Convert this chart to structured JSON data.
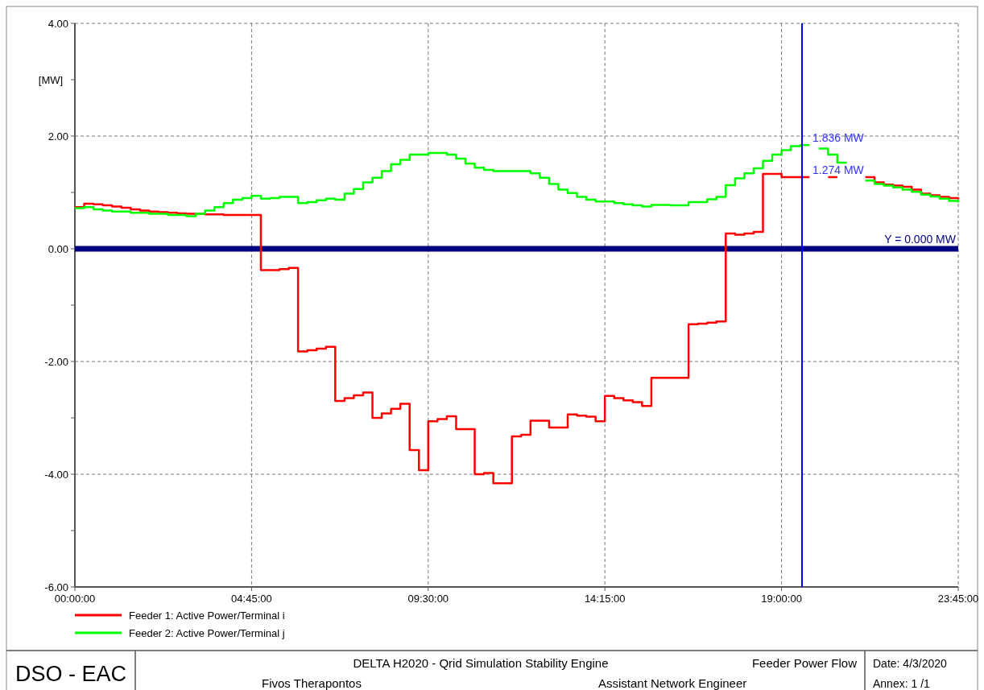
{
  "chart_data": {
    "type": "step",
    "ylabel": "[MW]",
    "xlim": [
      0,
      23.75
    ],
    "xticks": [
      {
        "value": 0,
        "label": "00:00:00"
      },
      {
        "value": 4.75,
        "label": "04:45:00"
      },
      {
        "value": 9.5,
        "label": "09:30:00"
      },
      {
        "value": 14.25,
        "label": "14:15:00"
      },
      {
        "value": 19,
        "label": "19:00:00"
      },
      {
        "value": 23.75,
        "label": "23:45:00"
      }
    ],
    "ylim": [
      -6,
      4
    ],
    "yticks": [
      {
        "value": 4,
        "label": "4.00"
      },
      {
        "value": 3,
        "label": null
      },
      {
        "value": 2,
        "label": "2.00"
      },
      {
        "value": 1,
        "label": null
      },
      {
        "value": 0,
        "label": "0.00"
      },
      {
        "value": -1,
        "label": null
      },
      {
        "value": -2,
        "label": "-2.00"
      },
      {
        "value": -3,
        "label": null
      },
      {
        "value": -4,
        "label": "-4.00"
      },
      {
        "value": -5,
        "label": null
      },
      {
        "value": -6,
        "label": "-6.00"
      }
    ],
    "grid": true,
    "legend": "bottom",
    "line_style": "solid",
    "marker": "none",
    "series": [
      {
        "name": "Feeder 1: Active Power/Terminal i",
        "color": "#ff0000",
        "x": [
          0,
          0.25,
          0.5,
          0.75,
          1,
          1.25,
          1.5,
          1.75,
          2,
          2.25,
          2.5,
          2.75,
          3,
          3.25,
          3.5,
          4,
          5,
          5.5,
          5.75,
          6,
          6.25,
          6.5,
          6.75,
          7,
          7.25,
          7.5,
          7.75,
          8,
          8.25,
          8.5,
          8.75,
          9,
          9.25,
          9.5,
          9.75,
          10,
          10.25,
          10.75,
          11,
          11.25,
          11.75,
          12,
          12.25,
          12.75,
          13.25,
          13.5,
          13.75,
          14,
          14.25,
          14.5,
          14.75,
          15,
          15.25,
          15.5,
          16.5,
          16.75,
          17,
          17.25,
          17.5,
          17.75,
          18,
          18.25,
          18.5,
          19,
          19.75,
          20.25,
          20.5,
          21.25,
          21.5,
          21.75,
          22,
          22.25,
          22.5,
          22.75,
          23,
          23.25,
          23.5,
          23.75
        ],
        "values": [
          0.74,
          0.8,
          0.79,
          0.77,
          0.75,
          0.73,
          0.7,
          0.68,
          0.66,
          0.65,
          0.64,
          0.63,
          0.62,
          0.62,
          0.61,
          0.6,
          -0.38,
          -0.36,
          -0.34,
          -1.82,
          -1.8,
          -1.77,
          -1.74,
          -2.7,
          -2.65,
          -2.6,
          -2.55,
          -3,
          -2.92,
          -2.84,
          -2.75,
          -3.57,
          -3.93,
          -3.06,
          -3.02,
          -2.97,
          -3.2,
          -4,
          -3.98,
          -4.16,
          -3.33,
          -3.3,
          -3.05,
          -3.17,
          -2.94,
          -2.96,
          -2.98,
          -3.06,
          -2.61,
          -2.65,
          -2.69,
          -2.72,
          -2.79,
          -2.29,
          -1.34,
          -1.33,
          -1.31,
          -1.29,
          0.27,
          0.25,
          0.27,
          0.3,
          1.33,
          1.27,
          null,
          1.27,
          null,
          1.27,
          1.18,
          1.14,
          1.12,
          1.1,
          1.05,
          0.98,
          0.95,
          0.92,
          0.9,
          0.88
        ]
      },
      {
        "name": "Feeder 2: Active Power/Terminal j",
        "color": "#00ff00",
        "x": [
          0,
          0.25,
          0.5,
          0.75,
          1,
          1.5,
          2,
          2.5,
          3,
          3.25,
          3.5,
          3.75,
          4,
          4.25,
          4.5,
          4.75,
          5,
          5.25,
          5.5,
          6,
          6.25,
          6.5,
          6.75,
          7,
          7.25,
          7.5,
          7.75,
          8,
          8.25,
          8.5,
          8.75,
          9,
          9.5,
          10,
          10.25,
          10.5,
          10.75,
          11,
          11.25,
          12,
          12.25,
          12.5,
          12.75,
          13,
          13.25,
          13.5,
          13.75,
          14,
          14.5,
          14.75,
          15,
          15.25,
          15.5,
          16,
          16.5,
          17,
          17.25,
          17.5,
          17.75,
          18,
          18.25,
          18.5,
          18.75,
          19,
          19.25,
          19.5,
          19.75,
          20,
          20.25,
          20.5,
          20.75,
          21.25,
          21.5,
          21.75,
          22,
          22.25,
          22.5,
          22.75,
          23,
          23.25,
          23.5,
          23.75
        ],
        "values": [
          0.72,
          0.74,
          0.7,
          0.68,
          0.66,
          0.64,
          0.62,
          0.6,
          0.58,
          0.62,
          0.68,
          0.74,
          0.81,
          0.87,
          0.9,
          0.94,
          0.89,
          0.9,
          0.92,
          0.81,
          0.83,
          0.86,
          0.89,
          0.87,
          0.98,
          1.06,
          1.18,
          1.26,
          1.38,
          1.5,
          1.58,
          1.67,
          1.7,
          1.67,
          1.6,
          1.51,
          1.44,
          1.4,
          1.38,
          1.38,
          1.34,
          1.26,
          1.15,
          1.05,
          0.99,
          0.92,
          0.87,
          0.84,
          0.81,
          0.79,
          0.77,
          0.75,
          0.78,
          0.77,
          0.83,
          0.88,
          0.92,
          1.13,
          1.25,
          1.34,
          1.43,
          1.56,
          1.67,
          1.75,
          1.82,
          1.84,
          null,
          1.78,
          1.67,
          1.53,
          null,
          1.21,
          1.15,
          1.12,
          1.09,
          1.05,
          1.01,
          0.96,
          0.93,
          0.89,
          0.85,
          0.82
        ]
      }
    ],
    "ref_lines": [
      {
        "axis": "y",
        "value": 0,
        "label": "Y =  0.000 MW",
        "color": "#000080"
      },
      {
        "axis": "x",
        "value": 19.55,
        "color": "#0000ff"
      }
    ],
    "annotations": [
      {
        "text": "1.836 MW",
        "x": 19.55,
        "y": 1.836
      },
      {
        "text": "1.274 MW",
        "x": 19.55,
        "y": 1.274
      },
      "DSO - EAC",
      "DELTA H2020 - Qrid Simulation Stability Engine",
      "Feeder Power Flow",
      "Date: 4/3/2020",
      "Fivos Therapontos",
      "Assistant Network Engineer",
      "Annex: 1 /1"
    ]
  }
}
